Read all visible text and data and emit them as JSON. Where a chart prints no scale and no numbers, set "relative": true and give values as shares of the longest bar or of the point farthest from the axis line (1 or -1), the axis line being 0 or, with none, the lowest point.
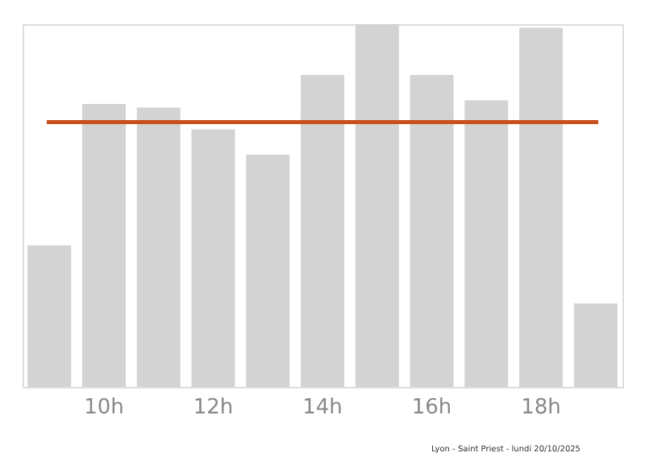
{
  "chart_data": {
    "type": "bar",
    "relative": true,
    "categories": [
      null,
      "10h",
      null,
      "12h",
      null,
      "14h",
      null,
      "16h",
      null,
      "18h",
      null
    ],
    "values": [
      0.39,
      0.78,
      0.77,
      0.71,
      0.64,
      0.86,
      1,
      0.86,
      0.79,
      0.99,
      0.23
    ],
    "color": "#d3d3d3",
    "ref_lines": [
      {
        "axis": "y",
        "value": 0.73,
        "color": "#c8501a"
      }
    ],
    "grid": false,
    "annotations": [
      "Lyon - Saint Priest - lundi 20/10/2025"
    ]
  }
}
